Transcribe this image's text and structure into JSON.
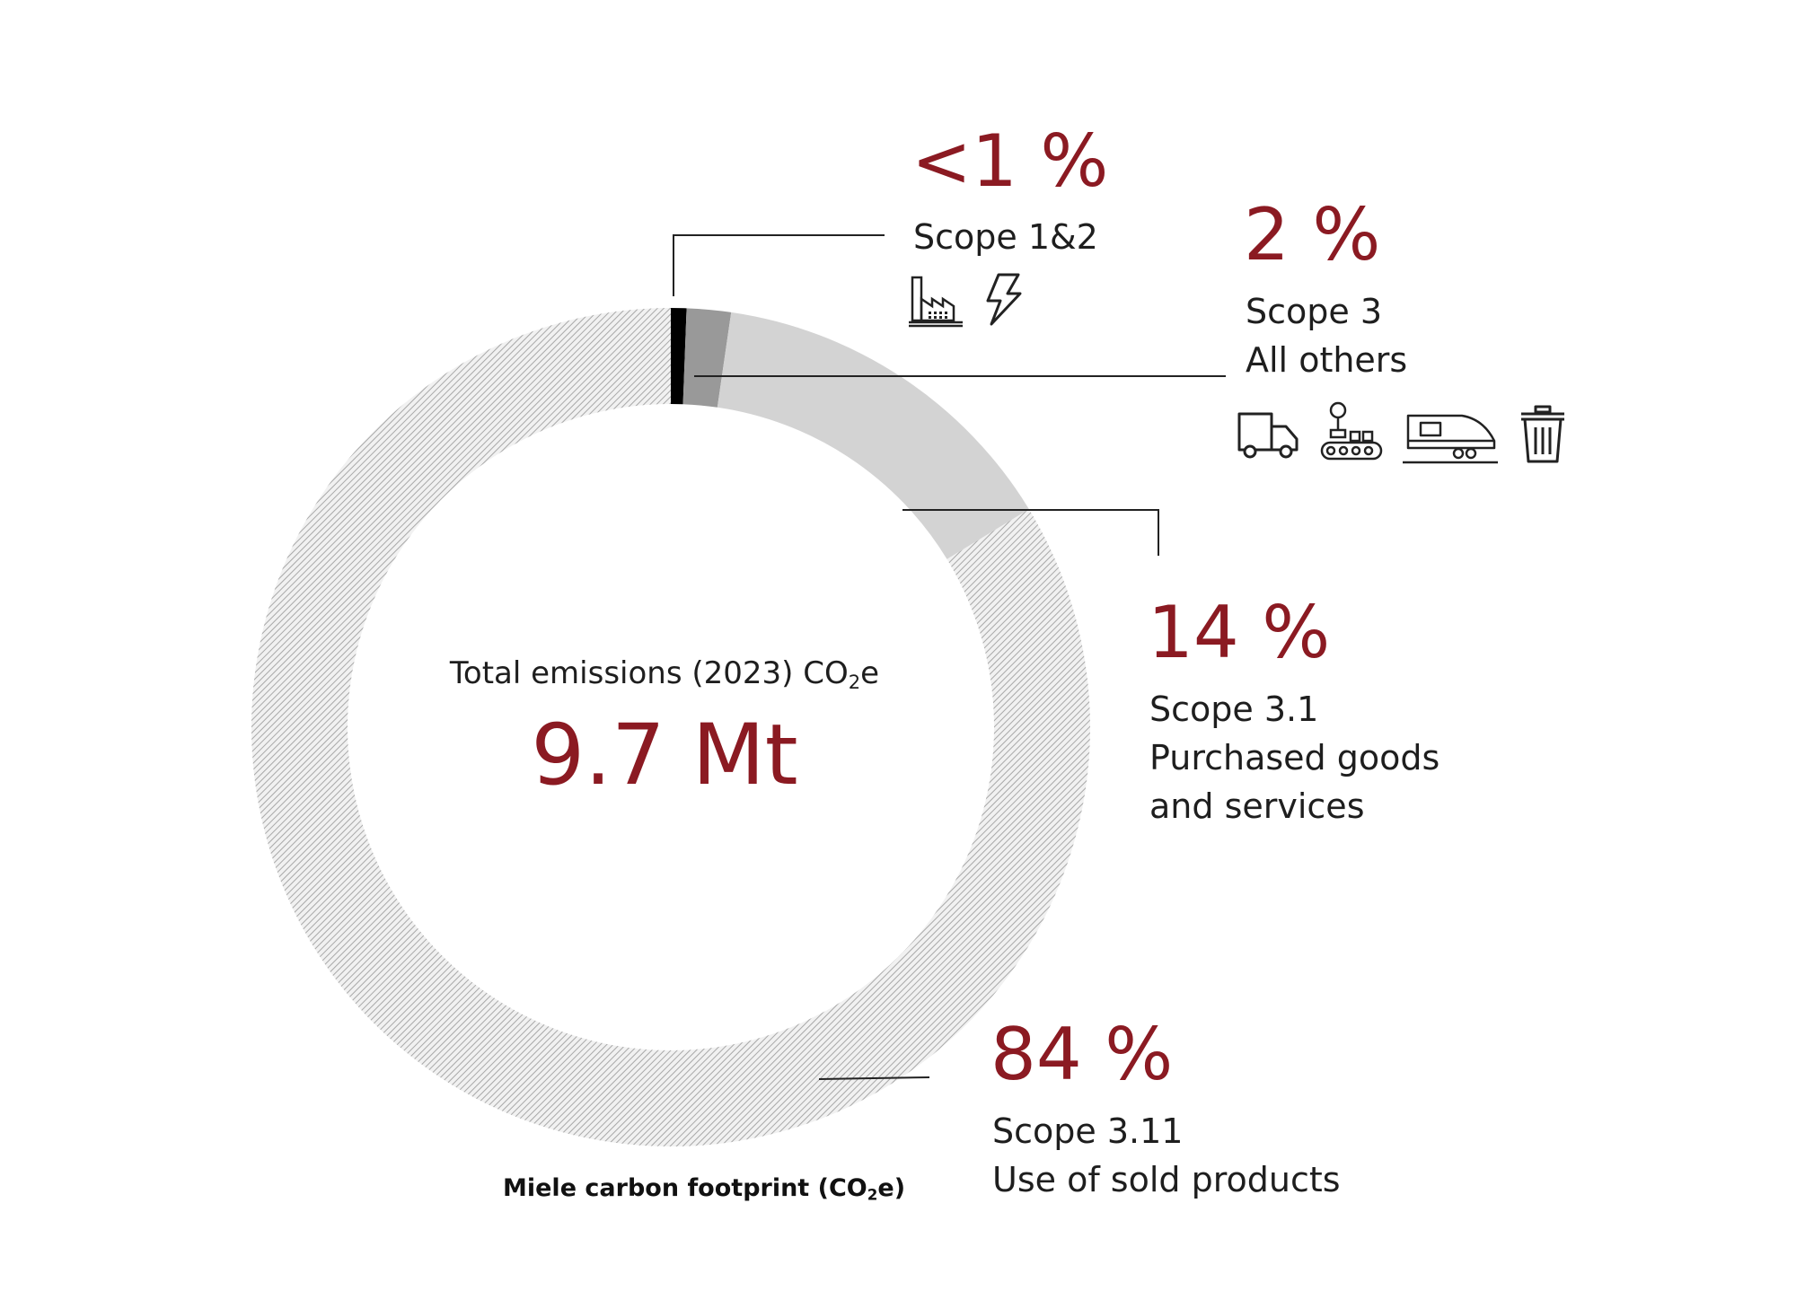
{
  "chart_data": {
    "type": "pie",
    "variant": "donut",
    "title": "Miele carbon footprint (CO₂e)",
    "center": {
      "caption_main": "Total emissions (2023) CO",
      "caption_sub": "2",
      "caption_tail": "e",
      "value": "9.7 Mt"
    },
    "segments": [
      {
        "label": "Scope 1&2",
        "percent_label": "<1 %",
        "value": 0.6,
        "color": "#000000",
        "pattern": "solid"
      },
      {
        "label": "Scope 3 All others",
        "percent_label": "2 %",
        "value": 1.7,
        "color": "#999999",
        "pattern": "solid"
      },
      {
        "label": "Scope 3.1 Purchased goods and services",
        "percent_label": "14 %",
        "value": 14,
        "color": "#d3d3d3",
        "pattern": "solid"
      },
      {
        "label": "Scope 3.11 Use of sold products",
        "percent_label": "84 %",
        "value": 83.7,
        "color": "#b9b9b9",
        "pattern": "hatched"
      }
    ]
  },
  "labels": {
    "scope12": {
      "pct": "<1 %",
      "line1": "Scope 1&2",
      "icons": [
        "factory-icon",
        "lightning-icon"
      ]
    },
    "scope3_other": {
      "pct": "2 %",
      "line1": "Scope 3",
      "line2": "All others",
      "icons": [
        "truck-icon",
        "conveyor-robot-icon",
        "train-icon",
        "trash-icon"
      ]
    },
    "scope31": {
      "pct": "14 %",
      "line1": "Scope 3.1",
      "line2": "Purchased goods",
      "line3": "and services"
    },
    "scope311": {
      "pct": "84 %",
      "line1": "Scope 3.11",
      "line2": "Use of sold products"
    }
  },
  "footer": {
    "main": "Miele carbon footprint (CO",
    "sub": "2",
    "tail": "e)"
  },
  "colors": {
    "accent": "#8b1a22",
    "text": "#1e1e1e",
    "leader": "#222222"
  }
}
